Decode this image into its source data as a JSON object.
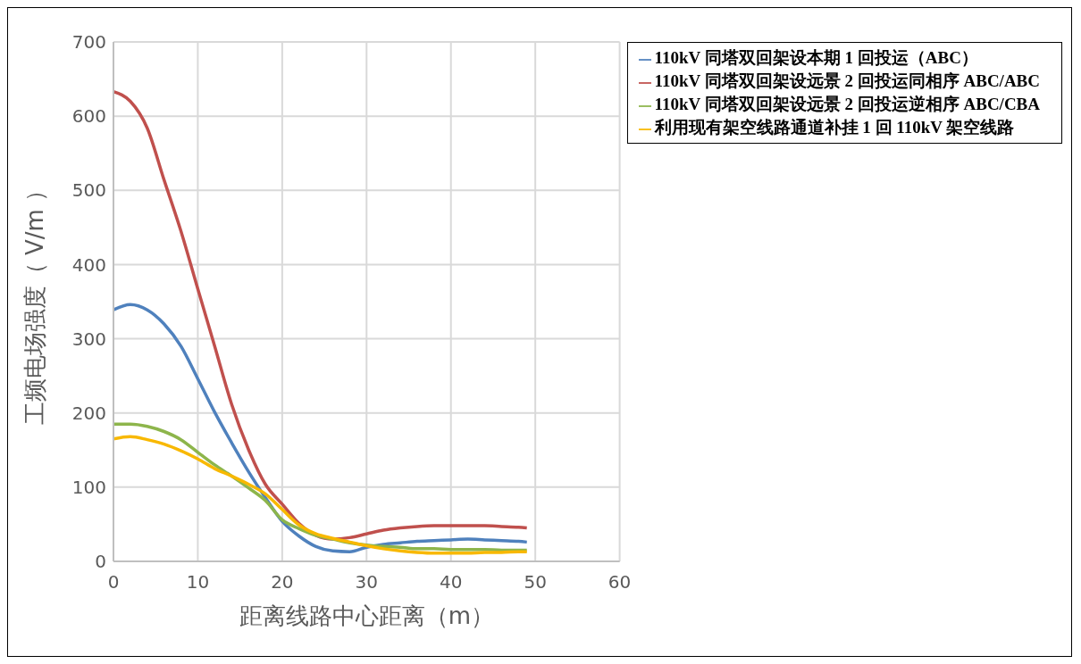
{
  "chart_data": {
    "type": "line",
    "xlabel": "距离线路中心距离（m）",
    "ylabel": "工频电场强度（ V/m ）",
    "x": [
      0,
      2,
      4,
      6,
      8,
      10,
      12,
      14,
      16,
      18,
      20,
      22,
      24,
      26,
      28,
      30,
      32,
      34,
      36,
      38,
      40,
      42,
      44,
      46,
      48,
      49
    ],
    "series": [
      {
        "name": "110kV 同塔双回架设本期 1 回投运（ABC）",
        "color": "#4f81bd",
        "values": [
          339,
          346,
          339,
          320,
          290,
          246,
          201,
          160,
          121,
          86,
          54,
          34,
          20,
          14,
          13,
          19,
          23,
          25,
          27,
          28,
          29,
          30,
          29,
          28,
          27,
          26
        ]
      },
      {
        "name": "110kV 同塔双回架设远景 2 回投运同相序 ABC/ABC",
        "color": "#c0504d",
        "values": [
          633,
          620,
          584,
          514,
          445,
          367,
          290,
          212,
          151,
          104,
          77,
          51,
          35,
          30,
          32,
          37,
          42,
          45,
          47,
          48,
          48,
          48,
          48,
          47,
          46,
          45
        ]
      },
      {
        "name": "110kV 同塔双回架设远景 2 回投运逆相序 ABC/CBA",
        "color": "#8db54b",
        "values": [
          185,
          185,
          182,
          175,
          164,
          147,
          130,
          115,
          99,
          82,
          56,
          44,
          35,
          30,
          25,
          22,
          20,
          19,
          17,
          17,
          16,
          16,
          16,
          15,
          15,
          15
        ]
      },
      {
        "name": "利用现有架空线路通道补挂 1 回 110kV 架空线路",
        "color": "#f8b800",
        "values": [
          165,
          168,
          164,
          158,
          149,
          138,
          125,
          115,
          104,
          91,
          70,
          49,
          37,
          31,
          26,
          21,
          17,
          14,
          12,
          11,
          11,
          11,
          12,
          12,
          13,
          13
        ]
      }
    ],
    "xlim": [
      0,
      60
    ],
    "xticks": [
      0,
      10,
      20,
      30,
      40,
      50,
      60
    ],
    "ylim": [
      0,
      700
    ],
    "yticks": [
      0,
      100,
      200,
      300,
      400,
      500,
      600,
      700
    ],
    "grid": true,
    "legend": "top right",
    "marker": "none",
    "line_style": "solid"
  }
}
